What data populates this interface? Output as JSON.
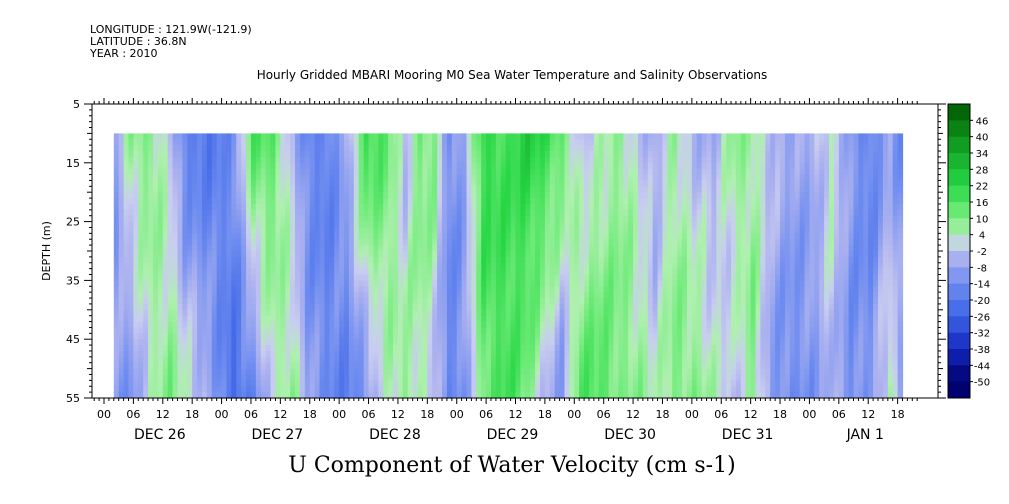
{
  "header": {
    "longitude": "LONGITUDE : 121.9W(-121.9)",
    "latitude": "LATITUDE : 36.8N",
    "year": "YEAR : 2010"
  },
  "title": "Hourly Gridded MBARI Mooring M0 Sea Water Temperature and Salinity Observations",
  "caption": "U Component of Water Velocity (cm s-1)",
  "chart_data": {
    "type": "heatmap",
    "ylabel": "DEPTH (m)",
    "y_ticks": [
      "5",
      "15",
      "25",
      "35",
      "45",
      "55"
    ],
    "ylim": [
      5,
      55
    ],
    "y_inverted": true,
    "x_hour_ticks": [
      "00",
      "06",
      "12",
      "18",
      "00",
      "06",
      "12",
      "18",
      "00",
      "06",
      "12",
      "18",
      "00",
      "06",
      "12",
      "18",
      "00",
      "06",
      "12",
      "18",
      "00",
      "06",
      "12",
      "18",
      "00",
      "06",
      "12",
      "18"
    ],
    "x_day_labels": [
      "DEC 26",
      "DEC 27",
      "DEC 28",
      "DEC 29",
      "DEC 30",
      "DEC 31",
      "JAN  1"
    ],
    "data_start_hour": 2,
    "data_end_hour": 163,
    "data_depth_top": 10,
    "data_depth_bottom": 55,
    "colorbar_labels": [
      "46",
      "40",
      "34",
      "28",
      "22",
      "16",
      "10",
      "4",
      "-2",
      "-8",
      "-14",
      "-20",
      "-26",
      "-32",
      "-38",
      "-44",
      "-50"
    ],
    "colorbar_range": [
      -50,
      52
    ],
    "colors": {
      "positive_strong": "#006400",
      "positive_mid": "#22dd44",
      "positive_weak": "#b8f0b8",
      "near_zero": "#c8c8ee",
      "negative_weak": "#a0a8f0",
      "negative_mid": "#5a74e6",
      "negative_strong": "#00008b"
    },
    "note_pattern": "Alternating semidiurnal bands of positive (green) and negative (blue) velocity across depth 10-55 m",
    "velocity_profile": [
      {
        "hour": 2,
        "top": -8,
        "bottom": -10
      },
      {
        "hour": 5,
        "top": 8,
        "bottom": -12
      },
      {
        "hour": 9,
        "top": 10,
        "bottom": 2
      },
      {
        "hour": 13,
        "top": -2,
        "bottom": 10
      },
      {
        "hour": 16,
        "top": -18,
        "bottom": 4
      },
      {
        "hour": 21,
        "top": -20,
        "bottom": -6
      },
      {
        "hour": 26,
        "top": -12,
        "bottom": -24
      },
      {
        "hour": 30,
        "top": 16,
        "bottom": -16
      },
      {
        "hour": 34,
        "top": 14,
        "bottom": 2
      },
      {
        "hour": 38,
        "top": -4,
        "bottom": 8
      },
      {
        "hour": 41,
        "top": -16,
        "bottom": -8
      },
      {
        "hour": 45,
        "top": -18,
        "bottom": -14
      },
      {
        "hour": 49,
        "top": -6,
        "bottom": -18
      },
      {
        "hour": 53,
        "top": 20,
        "bottom": -12
      },
      {
        "hour": 57,
        "top": 14,
        "bottom": 2
      },
      {
        "hour": 61,
        "top": -4,
        "bottom": 8
      },
      {
        "hour": 64,
        "top": 12,
        "bottom": 4
      },
      {
        "hour": 67,
        "top": 10,
        "bottom": -4
      },
      {
        "hour": 70,
        "top": -14,
        "bottom": -16
      },
      {
        "hour": 73,
        "top": -8,
        "bottom": -12
      },
      {
        "hour": 77,
        "top": 22,
        "bottom": 12
      },
      {
        "hour": 82,
        "top": 18,
        "bottom": 18
      },
      {
        "hour": 86,
        "top": 24,
        "bottom": 10
      },
      {
        "hour": 90,
        "top": 20,
        "bottom": -4
      },
      {
        "hour": 93,
        "top": 14,
        "bottom": -12
      },
      {
        "hour": 97,
        "top": -4,
        "bottom": 16
      },
      {
        "hour": 101,
        "top": 2,
        "bottom": 16
      },
      {
        "hour": 105,
        "top": 8,
        "bottom": 10
      },
      {
        "hour": 109,
        "top": -2,
        "bottom": 8
      },
      {
        "hour": 112,
        "top": -8,
        "bottom": 2
      },
      {
        "hour": 116,
        "top": 6,
        "bottom": 10
      },
      {
        "hour": 120,
        "top": -4,
        "bottom": 10
      },
      {
        "hour": 124,
        "top": -6,
        "bottom": 4
      },
      {
        "hour": 128,
        "top": 8,
        "bottom": -4
      },
      {
        "hour": 132,
        "top": 6,
        "bottom": 10
      },
      {
        "hour": 136,
        "top": -2,
        "bottom": -12
      },
      {
        "hour": 140,
        "top": -8,
        "bottom": -14
      },
      {
        "hour": 144,
        "top": -6,
        "bottom": -12
      },
      {
        "hour": 148,
        "top": 4,
        "bottom": -4
      },
      {
        "hour": 152,
        "top": -10,
        "bottom": -14
      },
      {
        "hour": 156,
        "top": -18,
        "bottom": -10
      },
      {
        "hour": 160,
        "top": -8,
        "bottom": 6
      },
      {
        "hour": 163,
        "top": -16,
        "bottom": -12
      }
    ]
  }
}
